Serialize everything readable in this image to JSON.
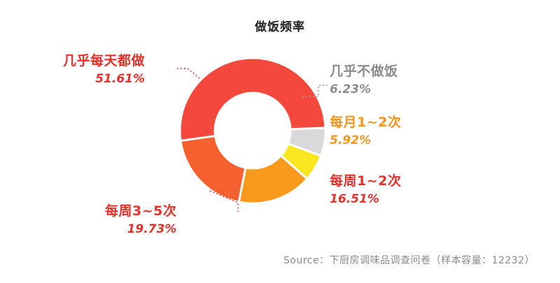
{
  "chart_data": {
    "type": "pie",
    "donut": true,
    "title": "做饭频率",
    "slices": [
      {
        "label": "几乎每天都做",
        "value": 51.61,
        "value_text": "51.61%",
        "color": "#f5483c",
        "label_color": "#e8302a"
      },
      {
        "label": "几乎不做饭",
        "value": 6.23,
        "value_text": "6.23%",
        "color": "#d9d9d9",
        "label_color": "#8c8c8c"
      },
      {
        "label": "每月1~2次",
        "value": 5.92,
        "value_text": "5.92%",
        "color": "#fae61e",
        "label_color": "#f0961e"
      },
      {
        "label": "每周1~2次",
        "value": 16.51,
        "value_text": "16.51%",
        "color": "#f99a1c",
        "label_color": "#e8302a"
      },
      {
        "label": "每周3~5次",
        "value": 19.73,
        "value_text": "19.73%",
        "color": "#f5602e",
        "label_color": "#e8302a"
      }
    ],
    "source": "Source：下厨房调味品调查问卷（样本容量：12232）"
  }
}
